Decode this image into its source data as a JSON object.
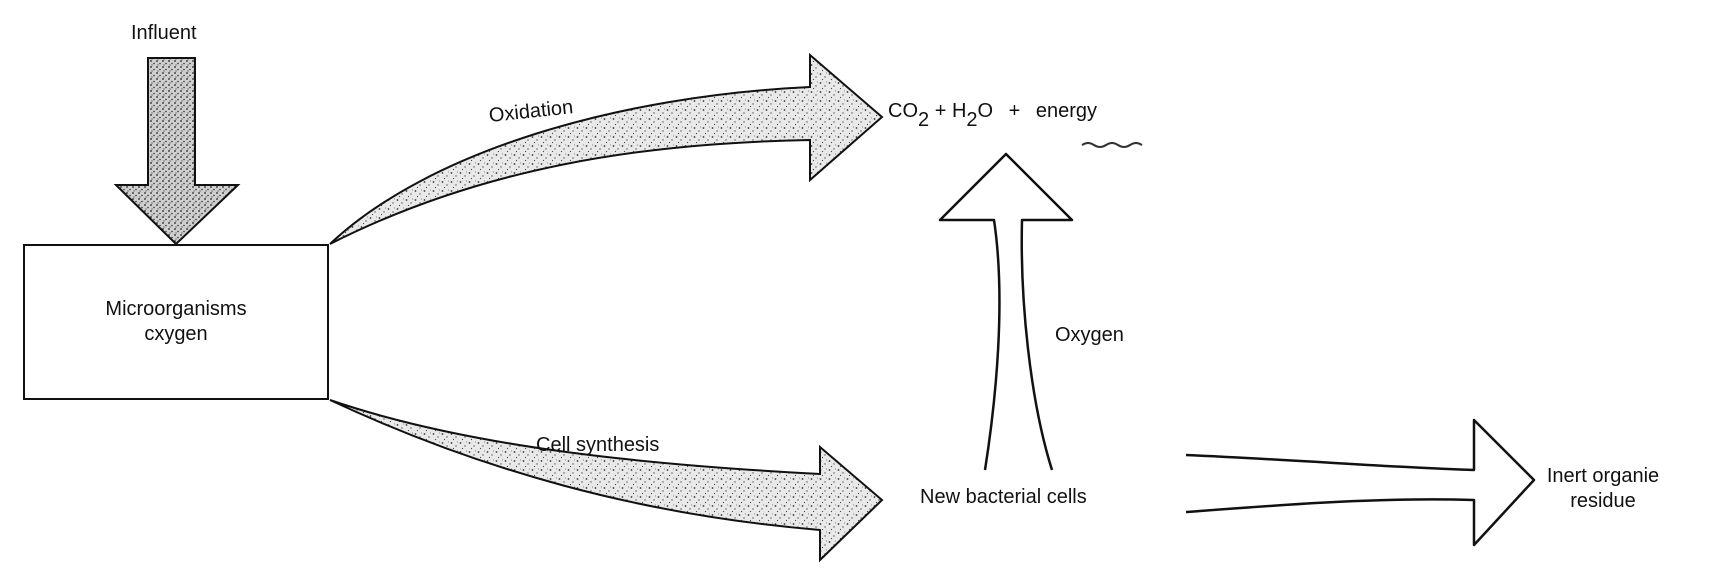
{
  "labels": {
    "influent": "Influent",
    "box_line1": "Microorganisms",
    "box_line2": "cxygen",
    "oxidation": "Oxidation",
    "cell_synthesis": "Cell synthesis",
    "oxygen": "Oxygen",
    "new_cells": "New  bacterial cells",
    "residue_line1": "Inert organie",
    "residue_line2": "residue"
  },
  "products": {
    "co": "CO",
    "co_sub": "2",
    "plus1": "+",
    "h": "H",
    "h_sub": "2",
    "o": "O",
    "plus2": "+",
    "energy": "energy"
  },
  "colors": {
    "line": "#111111",
    "fill": "#e6e6e6",
    "speckle": "#3a3a3a"
  }
}
